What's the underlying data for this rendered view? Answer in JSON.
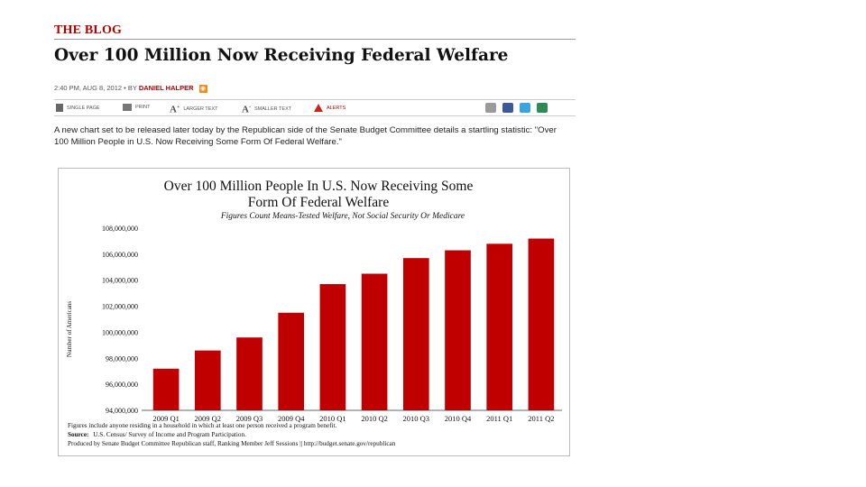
{
  "blog": {
    "tag": "THE BLOG",
    "headline": "Over 100 Million Now Receiving Federal Welfare",
    "byline_date": "2:40 PM, AUG 8, 2012 • BY",
    "byline_author": "DANIEL HALPER",
    "rss_icon": "rss-icon",
    "toolbar": {
      "single_page": "SINGLE PAGE",
      "print": "PRINT",
      "larger_text": "LARGER TEXT",
      "smaller_text": "SMALLER TEXT",
      "alerts": "ALERTS",
      "share_icons": [
        "email-icon",
        "facebook-icon",
        "twitter-icon",
        "share-icon"
      ],
      "share_colors": [
        "#9a9a9a",
        "#3b5998",
        "#3aa5dc",
        "#2e8b57"
      ]
    },
    "lede": "A new chart set to be released later today by the Republican side of the Senate Budget Committee details a startling statistic: \"Over 100 Million People in U.S. Now Receiving Some Form Of Federal Welfare.\""
  },
  "chart_data": {
    "type": "bar",
    "title_line1": "Over 100 Million People In U.S. Now Receiving Some",
    "title_line2": "Form Of Federal Welfare",
    "subtitle": "Figures Count Means-Tested Welfare, Not Social Security Or Medicare",
    "ylabel": "Number of Americans",
    "xlabel": "",
    "categories": [
      "2009 Q1",
      "2009 Q2",
      "2009 Q3",
      "2009 Q4",
      "2010 Q1",
      "2010 Q2",
      "2010 Q3",
      "2010 Q4",
      "2011 Q1",
      "2011 Q2"
    ],
    "values": [
      97200000,
      98600000,
      99600000,
      101500000,
      103700000,
      104500000,
      105700000,
      106300000,
      106800000,
      107200000
    ],
    "ylim": [
      94000000,
      108000000
    ],
    "yticks": [
      94000000,
      96000000,
      98000000,
      100000000,
      102000000,
      104000000,
      106000000,
      108000000
    ],
    "ytick_labels": [
      "94,000,000",
      "96,000,000",
      "98,000,000",
      "100,000,000",
      "102,000,000",
      "104,000,000",
      "106,000,000",
      "108,000,000"
    ],
    "bar_color": "#c00000",
    "grid": false,
    "footnote_line1": "Figures include anyone residing in a household in which at least one person received a program benefit.",
    "source_label": "Source:",
    "source_text": "U.S. Census/ Survey of Income and Program Participation.",
    "produced_by": "Produced by Senate Budget Committee Republican staff, Ranking Member Jeff Sessions || http://budget.senate.gov/republican"
  }
}
